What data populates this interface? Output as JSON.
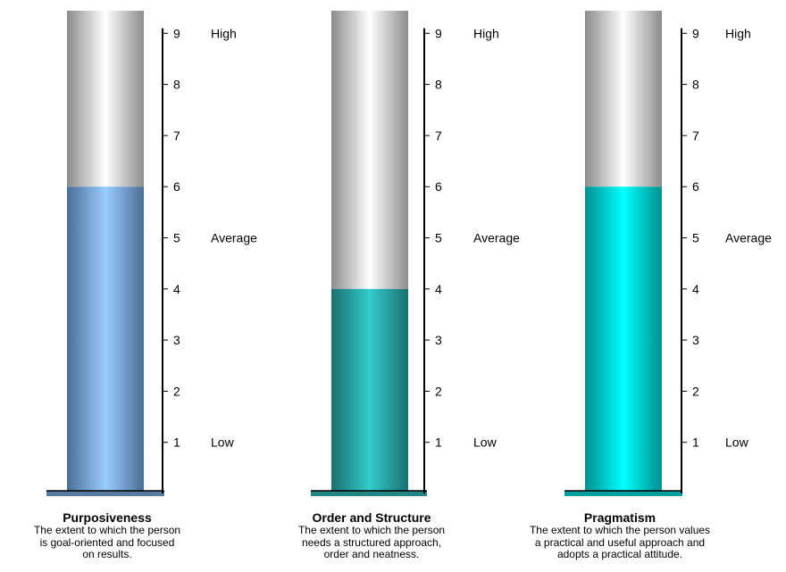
{
  "chart_data": [
    {
      "type": "bar",
      "title": "Purposiveness",
      "subtitle": "The extent to which the person is goal-oriented and focused on results.",
      "categories": [
        "Purposiveness"
      ],
      "values": [
        6
      ],
      "ylim": [
        0,
        10
      ],
      "yticks": [
        "1",
        "2",
        "3",
        "4",
        "5",
        "6",
        "7",
        "8",
        "9"
      ],
      "scale_labels": [
        {
          "at": 9,
          "text": "High"
        },
        {
          "at": 5,
          "text": "Average"
        },
        {
          "at": 1,
          "text": "Low"
        }
      ],
      "fill_color": "#99ccff",
      "fill_edge_color": "#4a6e96",
      "base_color": "#587c9f",
      "grid": false
    },
    {
      "type": "bar",
      "title": "Order and Structure",
      "subtitle": "The extent to which the person needs a structured approach, order and neatness.",
      "categories": [
        "Order and Structure"
      ],
      "values": [
        4
      ],
      "ylim": [
        0,
        10
      ],
      "yticks": [
        "1",
        "2",
        "3",
        "4",
        "5",
        "6",
        "7",
        "8",
        "9"
      ],
      "scale_labels": [
        {
          "at": 9,
          "text": "High"
        },
        {
          "at": 5,
          "text": "Average"
        },
        {
          "at": 1,
          "text": "Low"
        }
      ],
      "fill_color": "#33cccc",
      "fill_edge_color": "#1a6f6f",
      "base_color": "#258585",
      "grid": false
    },
    {
      "type": "bar",
      "title": "Pragmatism",
      "subtitle": "The extent to which the person values a practical and useful approach and adopts a practical attitude.",
      "categories": [
        "Pragmatism"
      ],
      "values": [
        6
      ],
      "ylim": [
        0,
        10
      ],
      "yticks": [
        "1",
        "2",
        "3",
        "4",
        "5",
        "6",
        "7",
        "8",
        "9"
      ],
      "scale_labels": [
        {
          "at": 9,
          "text": "High"
        },
        {
          "at": 5,
          "text": "Average"
        },
        {
          "at": 1,
          "text": "Low"
        }
      ],
      "fill_color": "#00ffff",
      "fill_edge_color": "#008f8f",
      "base_color": "#00a0a0",
      "grid": false
    }
  ],
  "captions": [
    {
      "title": "Purposiveness",
      "lines": [
        "The extent to which the person",
        "is goal-oriented and focused",
        "on results."
      ]
    },
    {
      "title": "Order and Structure",
      "lines": [
        "The extent to which the person",
        "needs a structured approach,",
        "order and neatness."
      ]
    },
    {
      "title": "Pragmatism",
      "lines": [
        "The extent to which the person values",
        "a practical and useful approach and",
        "adopts a practical attitude."
      ]
    }
  ]
}
